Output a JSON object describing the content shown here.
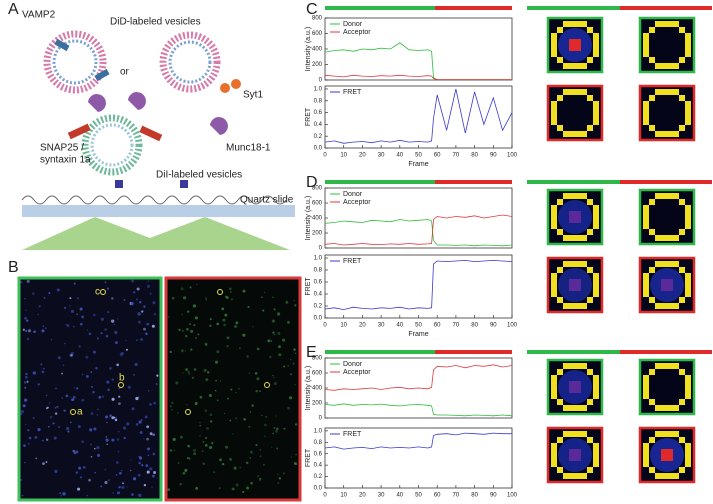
{
  "panel_labels": [
    "A",
    "B",
    "C",
    "D",
    "E"
  ],
  "schematic": {
    "vamp2": "VAMP2",
    "did": "DiD-labeled vesicles",
    "or": "or",
    "syt1": "Syt1",
    "snap25": "SNAP25 /",
    "syntaxin": "syntaxin 1a",
    "munc": "Munc18-1",
    "dil": "DiI-labeled vesicles",
    "slide": "Quartz slide"
  },
  "field_labels": [
    "c",
    "b",
    "a"
  ],
  "chart_data": [
    {
      "type": "line",
      "ylabel": "Intensity (a.u.)",
      "legend": "upper left",
      "x": [
        0,
        5,
        10,
        15,
        20,
        25,
        30,
        35,
        40,
        45,
        50,
        55,
        57,
        58,
        60,
        65,
        70,
        75,
        80,
        85,
        90,
        95,
        100
      ],
      "xlim": [
        0,
        100
      ],
      "ylim": [
        0,
        800
      ],
      "yticks": [
        0,
        200,
        400,
        600,
        800
      ],
      "series": [
        {
          "name": "Donor",
          "color": "#2fbf3a",
          "values": [
            360,
            380,
            390,
            370,
            400,
            390,
            410,
            400,
            480,
            390,
            380,
            390,
            370,
            30,
            5,
            5,
            5,
            5,
            5,
            5,
            5,
            5,
            5
          ]
        },
        {
          "name": "Acceptor",
          "color": "#e03a3a",
          "values": [
            60,
            50,
            40,
            60,
            50,
            45,
            55,
            50,
            60,
            50,
            45,
            55,
            50,
            20,
            5,
            5,
            5,
            5,
            5,
            5,
            5,
            5,
            5
          ]
        }
      ]
    },
    {
      "type": "line",
      "ylabel": "FRET",
      "xlabel": "Frame",
      "legend": "upper left",
      "x": [
        0,
        5,
        10,
        15,
        20,
        25,
        30,
        35,
        40,
        45,
        50,
        55,
        57,
        58,
        60,
        65,
        70,
        75,
        80,
        85,
        90,
        95,
        100
      ],
      "xlim": [
        0,
        100
      ],
      "xticks": [
        0,
        10,
        20,
        30,
        40,
        50,
        60,
        70,
        80,
        90,
        100
      ],
      "ylim": [
        0,
        1.05
      ],
      "yticks": [
        {
          "value": 0,
          "label": "0.0"
        },
        {
          "value": 0.2,
          "label": "0.2"
        },
        {
          "value": 0.4,
          "label": "0.4"
        },
        {
          "value": 0.6,
          "label": "0.6"
        },
        {
          "value": 0.8,
          "label": "0.8"
        },
        {
          "value": 1,
          "label": "1.0"
        }
      ],
      "series": [
        {
          "name": "FRET",
          "color": "#3a3ad0",
          "values": [
            0.1,
            0.12,
            0.08,
            0.1,
            0.11,
            0.09,
            0.12,
            0.1,
            0.13,
            0.1,
            0.11,
            0.1,
            0.12,
            0.5,
            0.9,
            0.3,
            1.0,
            0.25,
            0.95,
            0.4,
            0.85,
            0.3,
            0.6
          ]
        }
      ]
    },
    {
      "type": "line",
      "ylabel": "Intensity (a.u.)",
      "legend": "upper left",
      "x": [
        0,
        5,
        10,
        15,
        20,
        25,
        30,
        35,
        40,
        45,
        50,
        55,
        57,
        58,
        60,
        65,
        70,
        75,
        80,
        85,
        90,
        95,
        100
      ],
      "xlim": [
        0,
        100
      ],
      "ylim": [
        0,
        800
      ],
      "yticks": [
        0,
        200,
        400,
        600,
        800
      ],
      "series": [
        {
          "name": "Donor",
          "color": "#2fbf3a",
          "values": [
            330,
            340,
            360,
            350,
            340,
            370,
            360,
            350,
            380,
            360,
            370,
            380,
            360,
            100,
            40,
            40,
            35,
            40,
            30,
            40,
            35,
            30,
            40
          ]
        },
        {
          "name": "Acceptor",
          "color": "#e03a3a",
          "values": [
            50,
            60,
            40,
            50,
            60,
            50,
            45,
            55,
            50,
            60,
            50,
            55,
            60,
            380,
            420,
            400,
            420,
            410,
            430,
            400,
            420,
            440,
            420
          ]
        }
      ]
    },
    {
      "type": "line",
      "ylabel": "FRET",
      "xlabel": "Frame",
      "legend": "upper left",
      "x": [
        0,
        5,
        10,
        15,
        20,
        25,
        30,
        35,
        40,
        45,
        50,
        55,
        57,
        58,
        60,
        65,
        70,
        75,
        80,
        85,
        90,
        95,
        100
      ],
      "xlim": [
        0,
        100
      ],
      "xticks": [
        0,
        10,
        20,
        30,
        40,
        50,
        60,
        70,
        80,
        90,
        100
      ],
      "ylim": [
        0,
        1.05
      ],
      "yticks": [
        {
          "value": 0,
          "label": "0.0"
        },
        {
          "value": 0.2,
          "label": "0.2"
        },
        {
          "value": 0.4,
          "label": "0.4"
        },
        {
          "value": 0.6,
          "label": "0.6"
        },
        {
          "value": 0.8,
          "label": "0.8"
        },
        {
          "value": 1,
          "label": "1.0"
        }
      ],
      "series": [
        {
          "name": "FRET",
          "color": "#3a3ad0",
          "values": [
            0.15,
            0.17,
            0.14,
            0.18,
            0.16,
            0.15,
            0.17,
            0.16,
            0.18,
            0.15,
            0.17,
            0.16,
            0.17,
            0.9,
            0.95,
            0.94,
            0.95,
            0.96,
            0.94,
            0.95,
            0.96,
            0.95,
            0.94
          ]
        }
      ]
    },
    {
      "type": "line",
      "ylabel": "Intensity (a.u.)",
      "legend": "upper left",
      "x": [
        0,
        5,
        10,
        15,
        20,
        25,
        30,
        35,
        40,
        45,
        50,
        55,
        57,
        58,
        60,
        65,
        70,
        75,
        80,
        85,
        90,
        95,
        100
      ],
      "xlim": [
        0,
        100
      ],
      "ylim": [
        0,
        800
      ],
      "yticks": [
        0,
        200,
        400,
        600,
        800
      ],
      "series": [
        {
          "name": "Donor",
          "color": "#2fbf3a",
          "values": [
            180,
            170,
            190,
            170,
            180,
            175,
            185,
            170,
            160,
            175,
            180,
            170,
            160,
            50,
            40,
            40,
            35,
            30,
            40,
            35,
            30,
            40,
            30
          ]
        },
        {
          "name": "Acceptor",
          "color": "#e03a3a",
          "values": [
            380,
            370,
            390,
            380,
            390,
            400,
            380,
            400,
            410,
            390,
            400,
            390,
            410,
            640,
            690,
            680,
            700,
            670,
            700,
            690,
            710,
            680,
            700
          ]
        }
      ]
    },
    {
      "type": "line",
      "ylabel": "FRET",
      "legend": "upper left",
      "x": [
        0,
        5,
        10,
        15,
        20,
        25,
        30,
        35,
        40,
        45,
        50,
        55,
        57,
        58,
        60,
        65,
        70,
        75,
        80,
        85,
        90,
        95,
        100
      ],
      "xlim": [
        0,
        100
      ],
      "xticks": [
        0,
        10,
        20,
        30,
        40,
        50,
        60,
        70,
        80,
        90,
        100
      ],
      "ylim": [
        0,
        1.05
      ],
      "yticks": [
        {
          "value": 0,
          "label": "0.0"
        },
        {
          "value": 0.2,
          "label": "0.2"
        },
        {
          "value": 0.4,
          "label": "0.4"
        },
        {
          "value": 0.6,
          "label": "0.6"
        },
        {
          "value": 0.8,
          "label": "0.8"
        },
        {
          "value": 1,
          "label": "1.0"
        }
      ],
      "series": [
        {
          "name": "FRET",
          "color": "#3a3ad0",
          "values": [
            0.7,
            0.72,
            0.68,
            0.7,
            0.71,
            0.69,
            0.72,
            0.7,
            0.71,
            0.7,
            0.72,
            0.7,
            0.72,
            0.92,
            0.94,
            0.95,
            0.93,
            0.96,
            0.95,
            0.94,
            0.96,
            0.95,
            0.95
          ]
        }
      ]
    }
  ]
}
